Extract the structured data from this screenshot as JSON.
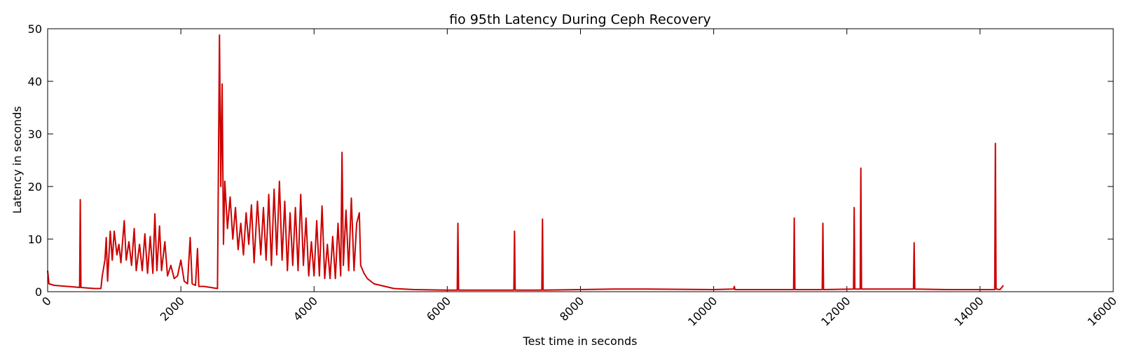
{
  "chart_data": {
    "type": "line",
    "title": "fio 95th Latency During Ceph Recovery",
    "x_label": "Test time in seconds",
    "y_label": "Latency in seconds",
    "xlim": [
      0,
      16000
    ],
    "xticks": [
      0,
      2000,
      4000,
      6000,
      8000,
      10000,
      12000,
      14000,
      16000
    ],
    "ylim": [
      0,
      50
    ],
    "yticks": [
      0,
      10,
      20,
      30,
      40,
      50
    ],
    "grid": false,
    "series": [
      {
        "color": "#cc0000",
        "x": [
          0,
          20,
          100,
          200,
          300,
          400,
          480,
          490,
          500,
          600,
          700,
          800,
          820,
          860,
          880,
          900,
          940,
          970,
          1000,
          1040,
          1070,
          1100,
          1150,
          1180,
          1220,
          1260,
          1300,
          1330,
          1380,
          1420,
          1460,
          1500,
          1540,
          1580,
          1610,
          1640,
          1680,
          1710,
          1760,
          1800,
          1850,
          1900,
          1950,
          2000,
          2050,
          2100,
          2140,
          2170,
          2220,
          2250,
          2270,
          2350,
          2450,
          2550,
          2580,
          2600,
          2620,
          2640,
          2660,
          2700,
          2740,
          2780,
          2820,
          2860,
          2900,
          2940,
          2980,
          3020,
          3060,
          3100,
          3150,
          3200,
          3240,
          3280,
          3320,
          3360,
          3400,
          3440,
          3480,
          3520,
          3560,
          3600,
          3640,
          3680,
          3720,
          3760,
          3800,
          3840,
          3880,
          3920,
          3960,
          4000,
          4040,
          4080,
          4120,
          4160,
          4200,
          4240,
          4280,
          4320,
          4360,
          4400,
          4420,
          4440,
          4480,
          4520,
          4560,
          4600,
          4640,
          4680,
          4700,
          4750,
          4800,
          4900,
          5000,
          5200,
          5500,
          6000,
          6150,
          6160,
          6170,
          6500,
          7000,
          7010,
          7020,
          7420,
          7430,
          7440,
          8000,
          8500,
          9000,
          10000,
          10300,
          10310,
          10320,
          11200,
          11210,
          11220,
          11630,
          11640,
          11650,
          12100,
          12110,
          12120,
          12200,
          12210,
          12220,
          12500,
          13000,
          13010,
          13020,
          13500,
          14220,
          14230,
          14240,
          14300,
          14350
        ],
        "values": [
          4,
          1.5,
          1.2,
          1.1,
          1.0,
          0.9,
          0.8,
          17.5,
          0.8,
          0.7,
          0.6,
          0.6,
          3,
          6,
          10.3,
          2,
          11.5,
          6,
          11.5,
          7,
          9,
          5.5,
          13.5,
          6,
          9.5,
          5,
          12,
          4,
          9,
          4,
          11,
          3.5,
          10.5,
          3.5,
          14.8,
          4,
          12.5,
          4,
          9.5,
          3,
          5,
          2.5,
          3,
          6,
          2,
          1.5,
          10.3,
          1.5,
          1.2,
          8.2,
          1,
          1.0,
          0.8,
          0.6,
          48.8,
          20,
          39.5,
          9,
          21,
          12,
          18,
          10,
          16,
          8,
          13,
          7,
          15,
          9,
          16.5,
          5.5,
          17.2,
          7,
          16,
          6,
          18.5,
          5,
          19.5,
          7,
          21,
          6,
          17.2,
          4,
          15,
          5,
          16,
          4,
          18.5,
          5,
          14,
          3,
          9.5,
          3,
          13.5,
          3,
          16.3,
          2.5,
          9,
          2.5,
          10.5,
          2.5,
          13,
          3,
          26.5,
          5,
          15.5,
          4,
          17.8,
          4,
          13,
          15,
          5,
          3.5,
          2.5,
          1.5,
          1.2,
          0.6,
          0.4,
          0.3,
          0.3,
          13,
          0.3,
          0.3,
          0.3,
          11.5,
          0.3,
          0.3,
          13.8,
          0.3,
          0.4,
          0.5,
          0.5,
          0.4,
          0.5,
          1,
          0.4,
          0.4,
          14,
          0.4,
          0.4,
          13,
          0.4,
          0.5,
          16,
          0.5,
          0.5,
          23.5,
          0.5,
          0.5,
          0.5,
          9.3,
          0.5,
          0.4,
          0.4,
          28.2,
          0.5,
          0.4,
          1.2
        ]
      }
    ]
  }
}
